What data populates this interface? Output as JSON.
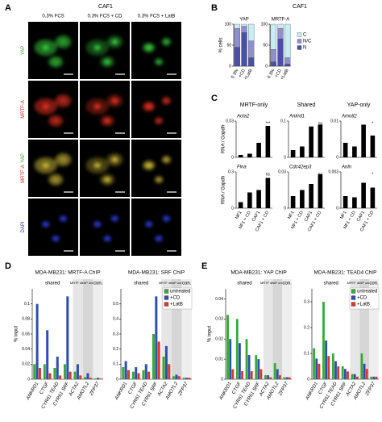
{
  "panels": {
    "A": {
      "letter": "A",
      "title": "CAF1",
      "columns": [
        "0.3% FCS",
        "0.3% FCS + CD",
        "0.3% FCS + LatB"
      ],
      "rows": [
        [
          "YAP"
        ],
        [
          "MRTF-A"
        ],
        [
          "MRTF-A",
          "YAP"
        ],
        [
          "DAPI"
        ]
      ]
    },
    "B": {
      "letter": "B",
      "title": "CAF1"
    },
    "C": {
      "letter": "C",
      "groups": [
        "MRTF-only",
        "Shared",
        "YAP-only"
      ]
    },
    "D": {
      "letter": "D",
      "groups": [
        "shared",
        "MRTF only",
        "YAP only",
        "con."
      ]
    },
    "E": {
      "letter": "E",
      "groups": [
        "shared",
        "MRTF only",
        "YAP only",
        "con."
      ]
    }
  },
  "chart_data": [
    {
      "type": "stacked_bar",
      "title": "YAP",
      "y_label": "% cells",
      "categories": [
        "0.3%",
        "+CD",
        "+LatB"
      ],
      "ylim": [
        0,
        100
      ],
      "yticks": [
        0,
        50,
        100
      ],
      "series": [
        {
          "color": "#4a4fa8",
          "values": [
            45,
            80,
            20
          ]
        },
        {
          "color": "#8f8fd0",
          "values": [
            45,
            15,
            40
          ]
        },
        {
          "color": "#c9ecf4",
          "values": [
            10,
            5,
            40
          ]
        }
      ]
    },
    {
      "type": "stacked_bar",
      "title": "MRTF-A",
      "categories": [
        "0.3%",
        "+CD",
        "+LatB"
      ],
      "ylim": [
        0,
        100
      ],
      "yticks": [
        0,
        50,
        100
      ],
      "legend": "right",
      "series": [
        {
          "name": "N",
          "color": "#4a4fa8",
          "values": [
            10,
            65,
            5
          ]
        },
        {
          "name": "N/C",
          "color": "#8f8fd0",
          "values": [
            30,
            25,
            15
          ]
        },
        {
          "name": "C",
          "color": "#c9ecf4",
          "values": [
            60,
            10,
            80
          ]
        }
      ]
    },
    {
      "type": "bar",
      "title": "Acta2",
      "y_label": "RNA / Gapdh",
      "annotation": "***",
      "color": "#000000",
      "ylim": [
        0,
        0.03
      ],
      "yticks": [
        0,
        0.03
      ],
      "values": [
        0.002,
        0.003,
        0.012,
        0.026
      ]
    },
    {
      "type": "bar",
      "title": "Ankrd1",
      "annotation": "ns",
      "color": "#000000",
      "ylim": [
        0,
        0.1
      ],
      "yticks": [
        0,
        0.1
      ],
      "values": [
        0.02,
        0.03,
        0.085,
        0.09
      ]
    },
    {
      "type": "bar",
      "title": "Amotl2",
      "annotation": "*",
      "color": "#000000",
      "ylim": [
        0,
        0.01
      ],
      "yticks": [
        0,
        0.01
      ],
      "values": [
        0.004,
        0.003,
        0.009,
        0.006
      ]
    },
    {
      "type": "bar",
      "title": "Flna",
      "y_label": "RNA / Gapdh",
      "annotation": "ns",
      "color": "#000000",
      "ylim": [
        0,
        0.3
      ],
      "yticks": [
        0,
        0.3
      ],
      "values": [
        0.05,
        0.13,
        0.15,
        0.25
      ],
      "categories": [
        "NF1",
        "NF1 + CD",
        "CAF1",
        "CAF1 + CD"
      ]
    },
    {
      "type": "bar",
      "title": "Cdc42ep3",
      "annotation": "ns",
      "color": "#000000",
      "ylim": [
        0,
        0.03
      ],
      "yticks": [
        0,
        0.03
      ],
      "values": [
        0.01,
        0.015,
        0.02,
        0.028
      ],
      "categories": [
        "NF1",
        "NF1 + CD",
        "CAF1",
        "CAF1 + CD"
      ]
    },
    {
      "type": "bar",
      "title": "Anln",
      "annotation": "*",
      "color": "#000000",
      "ylim": [
        0,
        0.003
      ],
      "yticks": [
        0,
        0.003
      ],
      "values": [
        0.001,
        0.0009,
        0.0021,
        0.0017
      ],
      "categories": [
        "NF1",
        "NF1 + CD",
        "CAF1",
        "CAF1 + CD"
      ]
    },
    {
      "type": "grouped_bar",
      "title": "MDA-MB231: MRTF-A ChIP",
      "y_label": "% input",
      "ylim": [
        0,
        0.12
      ],
      "yticks": [
        0,
        0.02,
        0.04,
        0.06,
        0.08,
        0.1
      ],
      "categories": [
        "ANKRD1",
        "CTGF",
        "CYR61 TEAD",
        "CYR61 SRF",
        "ACTA2",
        "AMOTL2",
        "ZFP37"
      ],
      "series": [
        {
          "color": "#3aa83a",
          "values": [
            0.02,
            0.02,
            0.015,
            0.02,
            0.01,
            0.003,
            0.001
          ]
        },
        {
          "color": "#2f4fb0",
          "values": [
            0.1,
            0.065,
            0.03,
            0.11,
            0.02,
            0.008,
            0.002
          ]
        },
        {
          "color": "#d83a2a",
          "values": [
            0.015,
            0.008,
            0.005,
            0.01,
            0.005,
            0.002,
            0.001
          ]
        }
      ]
    },
    {
      "type": "grouped_bar",
      "title": "MDA-MB231: SRF ChIP",
      "ylim": [
        0,
        0.6
      ],
      "yticks": [
        0,
        0.1,
        0.2,
        0.3,
        0.4,
        0.5
      ],
      "legend": "upper right",
      "categories": [
        "ANKRD1",
        "CTGF",
        "CYR61 TEAD",
        "CYR61 SRF",
        "ACTA2",
        "AMOTL2",
        "ZFP37"
      ],
      "series": [
        {
          "name": "untreated",
          "color": "#3aa83a",
          "values": [
            0.08,
            0.05,
            0.06,
            0.3,
            0.15,
            0.02,
            0.01
          ]
        },
        {
          "name": "+CD",
          "color": "#2f4fb0",
          "values": [
            0.12,
            0.08,
            0.1,
            0.55,
            0.22,
            0.03,
            0.01
          ]
        },
        {
          "name": "+LatB",
          "color": "#d83a2a",
          "values": [
            0.06,
            0.04,
            0.05,
            0.25,
            0.1,
            0.02,
            0.01
          ]
        }
      ]
    },
    {
      "type": "grouped_bar",
      "title": "MDA-MB231: YAP ChIP",
      "y_label": "% input",
      "ylim": [
        0,
        0.045
      ],
      "yticks": [
        0,
        0.01,
        0.02,
        0.03,
        0.04
      ],
      "categories": [
        "ANKRD1",
        "CTGF",
        "CYR61 TEAD",
        "CYR61 SRF",
        "ACTA2",
        "AMOTL2",
        "ZFP37"
      ],
      "series": [
        {
          "color": "#3aa83a",
          "values": [
            0.032,
            0.03,
            0.02,
            0.012,
            0.002,
            0.008,
            0.001
          ]
        },
        {
          "color": "#2f4fb0",
          "values": [
            0.02,
            0.018,
            0.012,
            0.01,
            0.002,
            0.005,
            0.001
          ]
        },
        {
          "color": "#d83a2a",
          "values": [
            0.005,
            0.004,
            0.004,
            0.005,
            0.001,
            0.002,
            0.001
          ]
        }
      ]
    },
    {
      "type": "grouped_bar",
      "title": "MDA-MB231: TEAD4 ChIP",
      "ylim": [
        0,
        0.35
      ],
      "yticks": [
        0,
        0.1,
        0.2,
        0.3
      ],
      "legend": "upper right",
      "categories": [
        "ANKRD1",
        "CTGF",
        "CYR61 TEAD",
        "CYR61 SRF",
        "ACTA2",
        "AMOTL2",
        "ZFP37"
      ],
      "series": [
        {
          "name": "untreated",
          "color": "#3aa83a",
          "values": [
            0.12,
            0.3,
            0.1,
            0.05,
            0.02,
            0.1,
            0.01
          ]
        },
        {
          "name": "+CD",
          "color": "#2f4fb0",
          "values": [
            0.08,
            0.15,
            0.07,
            0.04,
            0.02,
            0.06,
            0.01
          ]
        },
        {
          "name": "+LatB",
          "color": "#d83a2a",
          "values": [
            0.06,
            0.09,
            0.05,
            0.03,
            0.01,
            0.04,
            0.01
          ]
        }
      ]
    }
  ]
}
